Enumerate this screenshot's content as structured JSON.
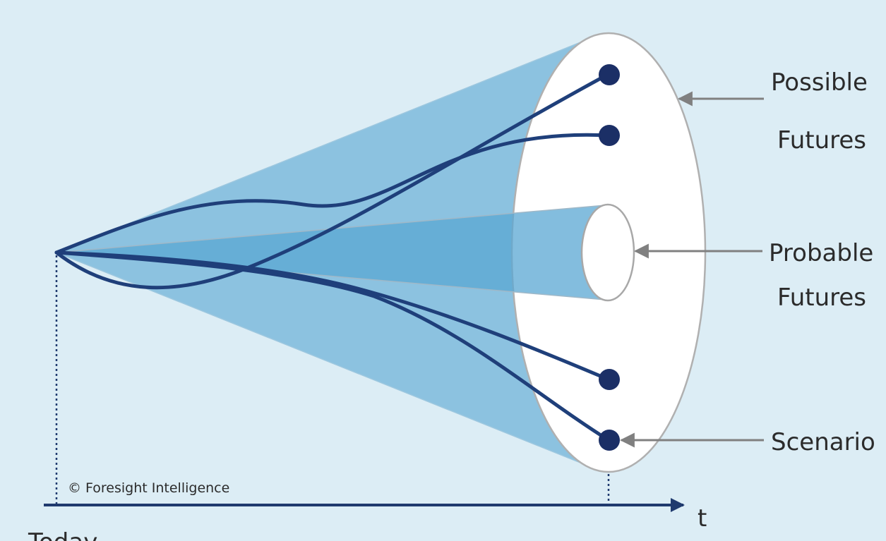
{
  "labels": {
    "possible_line1": "Possible",
    "possible_line2": "Futures",
    "probable_line1": "Probable",
    "probable_line2": "Futures",
    "scenario": "Scenario",
    "copyright": "© Foresight Intelligence",
    "time_axis": "t",
    "today": "Today"
  },
  "colors": {
    "background": "#dcedf5",
    "outer_cone": "#8cc2e0",
    "inner_cone": "#5aa7d3",
    "ellipse_fill": "#ffffff",
    "ellipse_stroke": "#b0b0b0",
    "paths": "#1f3f7a",
    "scenario_dots": "#1b2f66",
    "axis": "#1f3a6e",
    "arrows": "#808080"
  },
  "scenario_count": 4
}
